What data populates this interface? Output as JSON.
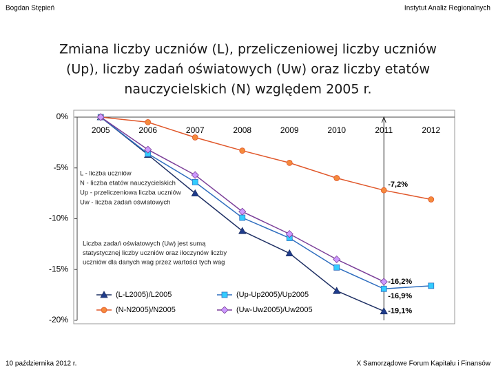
{
  "header": {
    "author": "Bogdan Stępień",
    "institute": "Instytut Analiz Regionalnych"
  },
  "footer": {
    "date": "10 października 2012 r.",
    "event": "X Samorządowe Forum Kapitału i Finansów"
  },
  "chart_data": {
    "type": "line",
    "title": [
      "Zmiana liczby uczniów (L), przeliczeniowej liczby uczniów",
      "(Up), liczby zadań oświatowych (Uw) oraz liczby etatów",
      "nauczycielskich (N) względem 2005 r."
    ],
    "categories": [
      "2005",
      "2006",
      "2007",
      "2008",
      "2009",
      "2010",
      "2011",
      "2012"
    ],
    "ylim": [
      0,
      -20
    ],
    "yticks": [
      {
        "value": 0,
        "label": "0%"
      },
      {
        "value": -5,
        "label": "-5%"
      },
      {
        "value": -10,
        "label": "-10%"
      },
      {
        "value": -15,
        "label": "-15%"
      },
      {
        "value": -20,
        "label": "-20%"
      }
    ],
    "series": [
      {
        "name": "(L-L2005)/L2005",
        "color": "#1f3064",
        "marker": "triangle",
        "values": [
          0,
          -3.7,
          -7.5,
          -11.2,
          -13.4,
          -17.1,
          -19.1,
          null
        ],
        "value_labels": [
          null,
          null,
          null,
          null,
          null,
          null,
          "-19,1%",
          null
        ]
      },
      {
        "name": "(Up-Up2005)/Up2005",
        "color": "#2f6ebf",
        "marker": "square",
        "values": [
          0,
          -3.6,
          -6.4,
          -9.9,
          -11.9,
          -14.8,
          -16.9,
          -16.6
        ],
        "value_labels": [
          null,
          null,
          null,
          null,
          null,
          null,
          "-16,9%",
          null
        ]
      },
      {
        "name": "(N-N2005)/N2005",
        "color": "#e0572a",
        "marker": "circle",
        "values": [
          0,
          -0.5,
          -2.0,
          -3.3,
          -4.5,
          -6.0,
          -7.2,
          -8.1
        ],
        "value_labels": [
          null,
          null,
          null,
          null,
          null,
          null,
          "-7,2%",
          null
        ]
      },
      {
        "name": "(Uw-Uw2005)/Uw2005",
        "color": "#7b3f99",
        "marker": "diamond",
        "values": [
          0,
          -3.2,
          -5.7,
          -9.3,
          -11.5,
          -14.0,
          -16.2,
          null
        ],
        "value_labels": [
          null,
          null,
          null,
          null,
          null,
          null,
          "-16,2%",
          null
        ]
      }
    ],
    "annotations": [
      "L - liczba uczniów",
      "N - liczba etatów nauczycielskich",
      "Up - przeliczeniowa liczba uczniów",
      "Uw - liczba zadań oświatowych"
    ],
    "note": [
      "Liczba zadań oświatowych (Uw) jest sumą",
      "statystycznej liczby uczniów oraz iloczynów liczby",
      "uczniów dla danych wag przez wartości tych wag"
    ]
  }
}
